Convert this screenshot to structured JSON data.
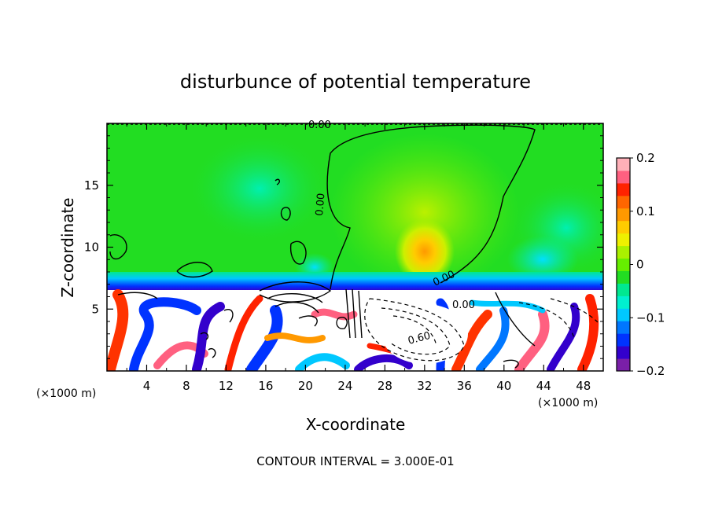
{
  "chart_data": {
    "type": "heatmap",
    "title": "disturbunce of potential temperature",
    "xlabel": "X-coordinate",
    "ylabel": "Z-coordinate",
    "x_unit_label": "(×1000 m)",
    "x_unit_label_right": "(×1000 m)",
    "footer": "CONTOUR INTERVAL = 3.000E-01",
    "xlim": [
      0,
      50
    ],
    "ylim": [
      0,
      20
    ],
    "x_ticks": [
      "4",
      "8",
      "12",
      "16",
      "20",
      "24",
      "28",
      "32",
      "36",
      "40",
      "44",
      "48"
    ],
    "y_ticks": [
      "5",
      "10",
      "15"
    ],
    "colorbar": {
      "range": [
        -0.2,
        0.2
      ],
      "tick_labels": [
        "0.2",
        "0.1",
        "0",
        "−0.1",
        "−0.2"
      ],
      "colors": [
        "#7a1fa8",
        "#3300cc",
        "#0033ff",
        "#0077ff",
        "#00c8ff",
        "#00f0d0",
        "#00e890",
        "#22dd22",
        "#66ee00",
        "#aaf000",
        "#eef000",
        "#ffcc00",
        "#ff9900",
        "#ff6600",
        "#ff2200",
        "#ff6080",
        "#ffb0b8"
      ]
    },
    "contour_labels": [
      "0.00",
      "0.00",
      "0.00",
      "0.00",
      "0.60"
    ],
    "background_level": 0.0
  }
}
